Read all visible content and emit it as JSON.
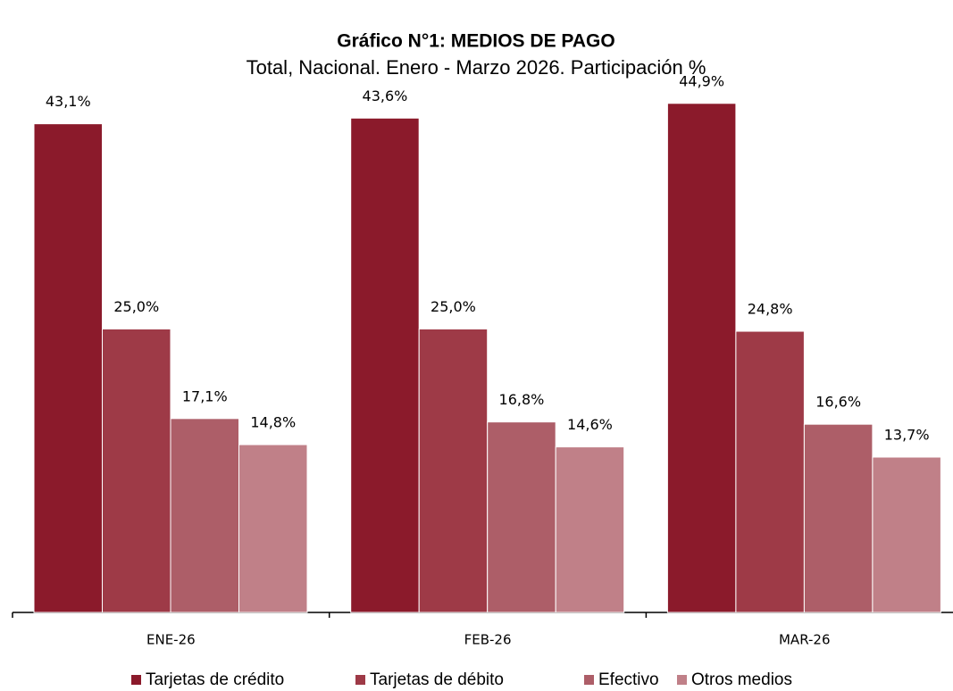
{
  "chart_data": {
    "type": "bar",
    "title": "Gráfico N°1: MEDIOS DE PAGO",
    "subtitle": "Total, Nacional. Enero - Marzo 2026. Participación %",
    "categories": [
      "ENE-26",
      "FEB-26",
      "MAR-26"
    ],
    "ylim": [
      0,
      50
    ],
    "series": [
      {
        "name": "Tarjetas de crédito",
        "color": "#8b1a2b",
        "values": [
          43.1,
          43.6,
          44.9
        ],
        "value_labels": [
          "43,1%",
          "43,6%",
          "44,9%"
        ]
      },
      {
        "name": "Tarjetas de débito",
        "color": "#9e3a47",
        "values": [
          25.0,
          25.0,
          24.8
        ],
        "value_labels": [
          "25,0%",
          "25,0%",
          "24,8%"
        ]
      },
      {
        "name": "Efectivo",
        "color": "#ad5e68",
        "values": [
          17.1,
          16.8,
          16.6
        ],
        "value_labels": [
          "17,1%",
          "16,8%",
          "16,6%"
        ]
      },
      {
        "name": "Otros medios",
        "color": "#c08088",
        "values": [
          14.8,
          14.6,
          13.7
        ],
        "value_labels": [
          "14,8%",
          "14,6%",
          "13,7%"
        ]
      }
    ]
  }
}
